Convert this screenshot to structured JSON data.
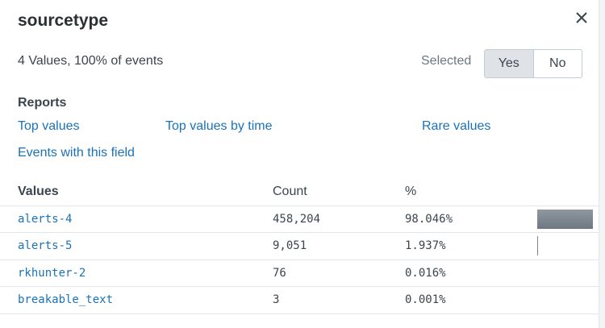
{
  "title": "sourcetype",
  "summary": "4 Values, 100% of events",
  "selected": {
    "label": "Selected",
    "options": [
      "Yes",
      "No"
    ],
    "value": "Yes"
  },
  "reports": {
    "heading": "Reports",
    "links": [
      "Top values",
      "Top values by time",
      "Rare values",
      "Events with this field"
    ]
  },
  "table": {
    "headers": [
      "Values",
      "Count",
      "%"
    ],
    "rows": [
      {
        "value": "alerts-4",
        "count": "458,204",
        "percent": "98.046%",
        "fraction": 0.98046
      },
      {
        "value": "alerts-5",
        "count": "9,051",
        "percent": "1.937%",
        "fraction": 0.01937
      },
      {
        "value": "rkhunter-2",
        "count": "76",
        "percent": "0.016%",
        "fraction": 0.00016
      },
      {
        "value": "breakable_text",
        "count": "3",
        "percent": "0.001%",
        "fraction": 1e-05
      }
    ]
  },
  "icons": {
    "close": "close-icon"
  },
  "colors": {
    "link": "#1a72b8",
    "bar": "#7d868f",
    "toggle_selected": "#dfe3e7"
  }
}
